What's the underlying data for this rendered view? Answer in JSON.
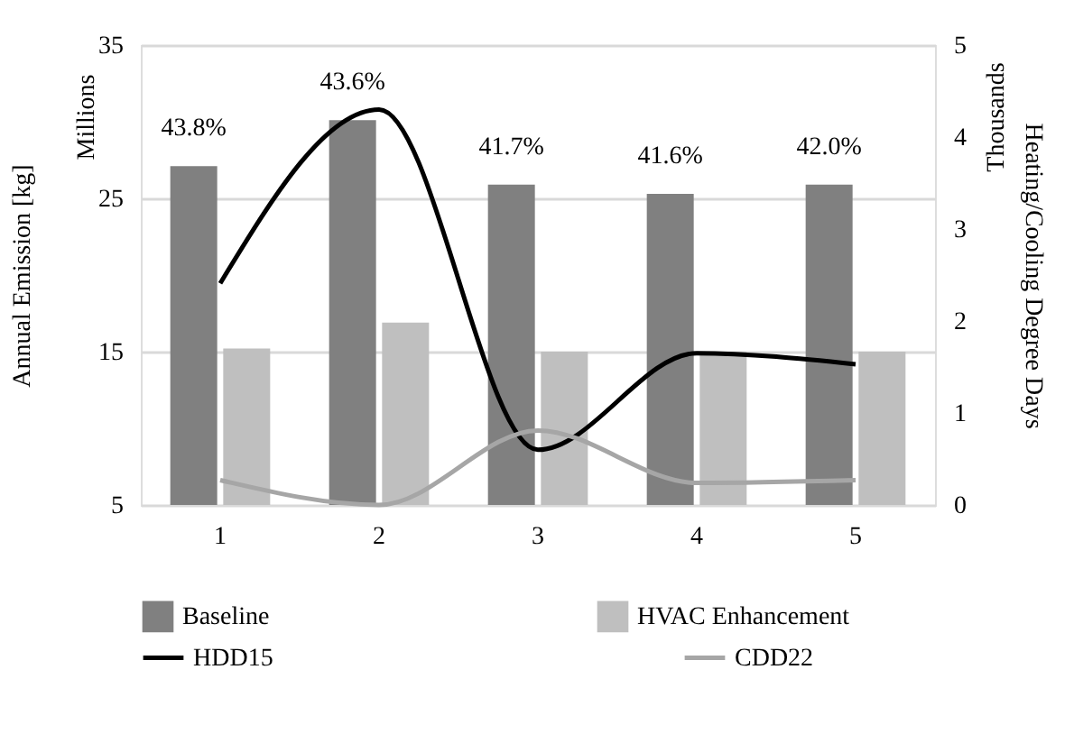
{
  "chart_data": {
    "type": "bar",
    "categories": [
      "1",
      "2",
      "3",
      "4",
      "5"
    ],
    "ylabel": "Annual Emission [kg]",
    "y2label": "Heating/Cooling Degree Days",
    "annotations": [
      "Millions",
      "Thousands",
      {
        "text": "43.8%",
        "x": "1",
        "y": 27.1
      },
      {
        "text": "43.6%",
        "x": "2",
        "y": 30.1
      },
      {
        "text": "41.7%",
        "x": "3",
        "y": 25.9
      },
      {
        "text": "41.6%",
        "x": "4",
        "y": 25.3
      },
      {
        "text": "42.0%",
        "x": "5",
        "y": 25.9
      }
    ],
    "ylim": [
      5,
      35
    ],
    "yticks": [
      5,
      15,
      25,
      35
    ],
    "y2lim": [
      0,
      5
    ],
    "y2ticks": [
      0,
      1,
      2,
      3,
      4,
      5
    ],
    "grid": "y",
    "legend": "bottom",
    "series": [
      {
        "name": "Baseline",
        "color": "#808080",
        "values": [
          27.1,
          30.1,
          25.9,
          25.3,
          25.9
        ]
      },
      {
        "name": "HVAC Enhancement",
        "color": "#bfbfbf",
        "values": [
          15.2,
          16.9,
          15.0,
          15.0,
          15.0
        ]
      },
      {
        "name": "HDD15",
        "type": "line",
        "axis": "y2",
        "color": "#000000",
        "values": [
          2.41,
          4.3,
          0.6,
          1.65,
          1.53
        ]
      },
      {
        "name": "CDD22",
        "type": "line",
        "axis": "y2",
        "color": "#a6a6a6",
        "values": [
          0.27,
          0.0,
          0.81,
          0.24,
          0.27
        ]
      }
    ]
  }
}
